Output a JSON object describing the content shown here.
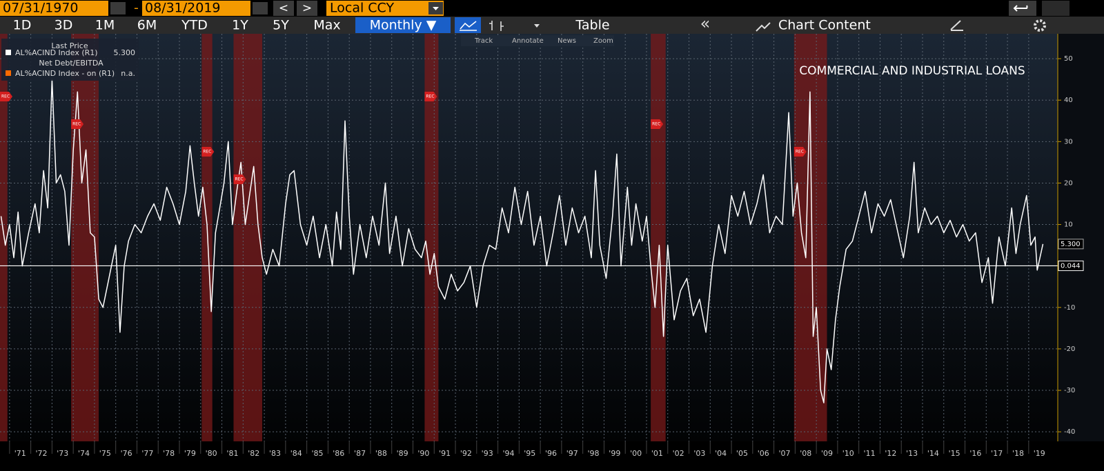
{
  "toolbar": {
    "start_date": "07/31/1970",
    "separator": "-",
    "end_date": "08/31/2019",
    "prev": "<",
    "next": ">",
    "currency": "Local CCY",
    "periods": [
      "1D",
      "3D",
      "1M",
      "6M",
      "YTD",
      "1Y",
      "5Y",
      "Max"
    ],
    "frequency": "Monthly ▼",
    "table": "Table",
    "collapse": "«",
    "chart_content": "Chart Content"
  },
  "chart_tools": [
    "Track",
    "Annotate",
    "News",
    "Zoom"
  ],
  "chart_data": {
    "type": "line",
    "title": "COMMERCIAL AND INDUSTRIAL LOANS",
    "legend": {
      "header": "Last Price",
      "extra_title": "Net Debt/EBITDA",
      "extra_name": "AL%ACIND Index -  on  (R1)",
      "extra_color": "#ff6a00",
      "extra_value": "n.a."
    },
    "last_price": {
      "value": 5.3,
      "label": "5.300"
    },
    "reference_line": 0.044,
    "series": [
      {
        "name": "AL%ACIND Index  (R1)",
        "color": "#ffffff",
        "x": [
          1970.6,
          1970.8,
          1971.0,
          1971.2,
          1971.4,
          1971.6,
          1971.9,
          1972.2,
          1972.4,
          1972.6,
          1972.8,
          1973.0,
          1973.2,
          1973.4,
          1973.6,
          1973.8,
          1974.0,
          1974.2,
          1974.4,
          1974.6,
          1974.8,
          1975.0,
          1975.2,
          1975.4,
          1975.6,
          1975.8,
          1976.0,
          1976.2,
          1976.4,
          1976.6,
          1976.9,
          1977.2,
          1977.5,
          1977.8,
          1978.1,
          1978.4,
          1978.7,
          1979.0,
          1979.3,
          1979.5,
          1979.7,
          1979.9,
          1980.1,
          1980.3,
          1980.5,
          1980.7,
          1980.9,
          1981.1,
          1981.3,
          1981.5,
          1981.7,
          1981.9,
          1982.1,
          1982.3,
          1982.5,
          1982.7,
          1982.9,
          1983.1,
          1983.4,
          1983.7,
          1984.0,
          1984.2,
          1984.4,
          1984.7,
          1985.0,
          1985.3,
          1985.6,
          1985.9,
          1986.2,
          1986.4,
          1986.6,
          1986.8,
          1987.0,
          1987.2,
          1987.5,
          1987.8,
          1988.1,
          1988.4,
          1988.7,
          1988.9,
          1989.2,
          1989.5,
          1989.8,
          1990.1,
          1990.4,
          1990.6,
          1990.8,
          1991.0,
          1991.2,
          1991.5,
          1991.8,
          1992.1,
          1992.4,
          1992.7,
          1993.0,
          1993.3,
          1993.6,
          1993.9,
          1994.2,
          1994.5,
          1994.8,
          1995.1,
          1995.4,
          1995.7,
          1996.0,
          1996.3,
          1996.6,
          1996.9,
          1997.2,
          1997.5,
          1997.8,
          1998.1,
          1998.4,
          1998.6,
          1998.8,
          1999.1,
          1999.4,
          1999.6,
          1999.8,
          2000.1,
          2000.3,
          2000.5,
          2000.8,
          2001.0,
          2001.2,
          2001.4,
          2001.6,
          2001.8,
          2002.0,
          2002.3,
          2002.6,
          2002.9,
          2003.2,
          2003.5,
          2003.8,
          2004.1,
          2004.4,
          2004.7,
          2005.0,
          2005.3,
          2005.6,
          2005.9,
          2006.2,
          2006.5,
          2006.8,
          2007.1,
          2007.4,
          2007.7,
          2007.9,
          2008.1,
          2008.3,
          2008.5,
          2008.7,
          2008.85,
          2009.0,
          2009.2,
          2009.35,
          2009.5,
          2009.7,
          2009.9,
          2010.1,
          2010.4,
          2010.7,
          2011.0,
          2011.3,
          2011.6,
          2011.9,
          2012.2,
          2012.5,
          2012.8,
          2013.1,
          2013.4,
          2013.6,
          2013.8,
          2014.1,
          2014.4,
          2014.7,
          2015.0,
          2015.3,
          2015.6,
          2015.9,
          2016.2,
          2016.5,
          2016.8,
          2017.1,
          2017.3,
          2017.6,
          2017.9,
          2018.2,
          2018.4,
          2018.6,
          2018.9,
          2019.1,
          2019.3,
          2019.4,
          2019.67
        ],
        "values": [
          12,
          5,
          10,
          2,
          13,
          0,
          8,
          15,
          8,
          23,
          14,
          45,
          20,
          22,
          18,
          5,
          28,
          42,
          20,
          28,
          8,
          7,
          -8,
          -10,
          -5,
          0,
          5,
          -16,
          0,
          6,
          10,
          8,
          12,
          15,
          11,
          19,
          15,
          10,
          18,
          29,
          20,
          12,
          19,
          10,
          -11,
          8,
          14,
          20,
          30,
          10,
          18,
          25,
          10,
          17,
          24,
          10,
          2,
          -2,
          4,
          0,
          15,
          22,
          23,
          10,
          5,
          12,
          2,
          10,
          0,
          13,
          4,
          35,
          12,
          -2,
          10,
          2,
          12,
          5,
          20,
          3,
          12,
          0,
          9,
          4,
          2,
          6,
          -2,
          3,
          -5,
          -8,
          -2,
          -6,
          -4,
          0,
          -10,
          0,
          5,
          4,
          14,
          8,
          19,
          10,
          18,
          5,
          12,
          0,
          8,
          17,
          5,
          14,
          8,
          12,
          2,
          23,
          5,
          -3,
          12,
          27,
          0,
          19,
          5,
          15,
          6,
          12,
          0,
          -10,
          5,
          -17,
          5,
          -13,
          -6,
          -3,
          -12,
          -8,
          -16,
          0,
          10,
          3,
          17,
          12,
          18,
          10,
          15,
          22,
          8,
          12,
          10,
          37,
          12,
          20,
          8,
          2,
          42,
          -17,
          -10,
          -30,
          -33,
          -20,
          -25,
          -13,
          -5,
          4,
          6,
          12,
          18,
          8,
          15,
          12,
          16,
          9,
          2,
          12,
          25,
          8,
          14,
          10,
          12,
          8,
          11,
          7,
          10,
          6,
          8,
          -4,
          2,
          -9,
          7,
          0,
          14,
          3,
          10,
          17,
          5,
          7,
          -1,
          5.3
        ]
      }
    ],
    "recessions": [
      {
        "start": 1969.95,
        "end": 1970.9,
        "label": "REC"
      },
      {
        "start": 1973.9,
        "end": 1975.2,
        "label": "REC"
      },
      {
        "start": 1980.05,
        "end": 1980.55,
        "label": "REC"
      },
      {
        "start": 1981.55,
        "end": 1982.9,
        "label": "REC"
      },
      {
        "start": 1990.55,
        "end": 1991.2,
        "label": "REC"
      },
      {
        "start": 2001.2,
        "end": 2001.9,
        "label": "REC"
      },
      {
        "start": 2007.95,
        "end": 2009.5,
        "label": "REC"
      }
    ],
    "xlim": [
      1970.55,
      2020.37
    ],
    "ylim": [
      -42.3,
      56
    ],
    "yticks": [
      50,
      40,
      30,
      20,
      10,
      -10,
      -20,
      -30,
      -40
    ],
    "xticks": [
      {
        "value": 1971,
        "label": "'71"
      },
      {
        "value": 1972,
        "label": "'72"
      },
      {
        "value": 1973,
        "label": "'73"
      },
      {
        "value": 1974,
        "label": "'74"
      },
      {
        "value": 1975,
        "label": "'75"
      },
      {
        "value": 1976,
        "label": "'76"
      },
      {
        "value": 1977,
        "label": "'77"
      },
      {
        "value": 1978,
        "label": "'78"
      },
      {
        "value": 1979,
        "label": "'79"
      },
      {
        "value": 1980,
        "label": "'80"
      },
      {
        "value": 1981,
        "label": "'81"
      },
      {
        "value": 1982,
        "label": "'82"
      },
      {
        "value": 1983,
        "label": "'83"
      },
      {
        "value": 1984,
        "label": "'84"
      },
      {
        "value": 1985,
        "label": "'85"
      },
      {
        "value": 1986,
        "label": "'86"
      },
      {
        "value": 1987,
        "label": "'87"
      },
      {
        "value": 1988,
        "label": "'88"
      },
      {
        "value": 1989,
        "label": "'89"
      },
      {
        "value": 1990,
        "label": "'90"
      },
      {
        "value": 1991,
        "label": "'91"
      },
      {
        "value": 1992,
        "label": "'92"
      },
      {
        "value": 1993,
        "label": "'93"
      },
      {
        "value": 1994,
        "label": "'94"
      },
      {
        "value": 1995,
        "label": "'95"
      },
      {
        "value": 1996,
        "label": "'96"
      },
      {
        "value": 1997,
        "label": "'97"
      },
      {
        "value": 1998,
        "label": "'98"
      },
      {
        "value": 1999,
        "label": "'99"
      },
      {
        "value": 2000,
        "label": "'00"
      },
      {
        "value": 2001,
        "label": "'01"
      },
      {
        "value": 2002,
        "label": "'02"
      },
      {
        "value": 2003,
        "label": "'03"
      },
      {
        "value": 2004,
        "label": "'04"
      },
      {
        "value": 2005,
        "label": "'05"
      },
      {
        "value": 2006,
        "label": "'06"
      },
      {
        "value": 2007,
        "label": "'07"
      },
      {
        "value": 2008,
        "label": "'08"
      },
      {
        "value": 2009,
        "label": "'09"
      },
      {
        "value": 2010,
        "label": "'10"
      },
      {
        "value": 2011,
        "label": "'11"
      },
      {
        "value": 2012,
        "label": "'12"
      },
      {
        "value": 2013,
        "label": "'13"
      },
      {
        "value": 2014,
        "label": "'14"
      },
      {
        "value": 2015,
        "label": "'15"
      },
      {
        "value": 2016,
        "label": "'16"
      },
      {
        "value": 2017,
        "label": "'17"
      },
      {
        "value": 2018,
        "label": "'18"
      },
      {
        "value": 2019,
        "label": "'19"
      }
    ],
    "grid": true
  }
}
